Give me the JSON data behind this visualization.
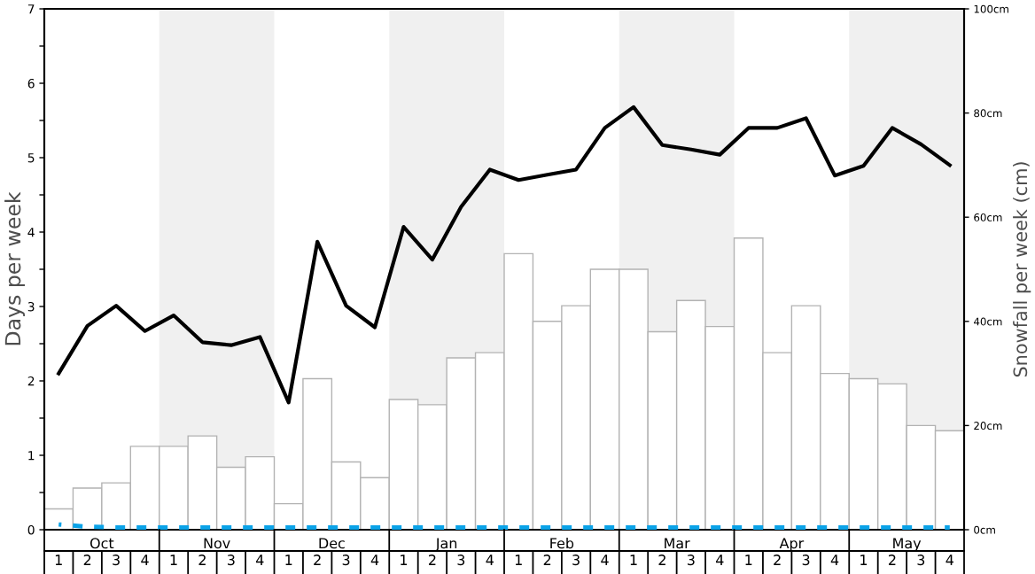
{
  "chart_data": {
    "type": "bar",
    "ylabel": "Days per week",
    "y2label": "Snowfall per week (cm)",
    "categories": [
      "1",
      "2",
      "3",
      "4",
      "1",
      "2",
      "3",
      "4",
      "1",
      "2",
      "3",
      "4",
      "1",
      "2",
      "3",
      "4",
      "1",
      "2",
      "3",
      "4",
      "1",
      "2",
      "3",
      "4",
      "1",
      "2",
      "3",
      "4",
      "1",
      "2",
      "3",
      "4"
    ],
    "annotations": [
      "Oct",
      "Nov",
      "Dec",
      "Jan",
      "Feb",
      "Mar",
      "Apr",
      "May"
    ],
    "ylim": [
      0,
      7
    ],
    "yticks": [
      0,
      {
        "value": 0.5,
        "label": null
      },
      1,
      {
        "value": 1.5,
        "label": null
      },
      2,
      {
        "value": 2.5,
        "label": null
      },
      3,
      {
        "value": 3.5,
        "label": null
      },
      4,
      {
        "value": 4.5,
        "label": null
      },
      5,
      {
        "value": 5.5,
        "label": null
      },
      6,
      {
        "value": 6.5,
        "label": null
      },
      7
    ],
    "y2lim": [
      0,
      100
    ],
    "y2ticks": [
      {
        "value": 0,
        "label": "0cm"
      },
      {
        "value": 20,
        "label": "20cm"
      },
      {
        "value": 40,
        "label": "40cm"
      },
      {
        "value": 60,
        "label": "60cm"
      },
      {
        "value": 80,
        "label": "80cm"
      },
      {
        "value": 100,
        "label": "100cm"
      }
    ],
    "series": [
      {
        "axis": "y2",
        "color": "#ffffff",
        "values": [
          4,
          8,
          9,
          16,
          16,
          18,
          12,
          14,
          5,
          29,
          13,
          10,
          25,
          24,
          33,
          34,
          53,
          40,
          43,
          50,
          50,
          38,
          44,
          39,
          56,
          34,
          43,
          30,
          29,
          28,
          20,
          19
        ]
      },
      {
        "type": "line",
        "color": "#000000",
        "line_style": "solid",
        "values": [
          2.1,
          2.74,
          3.01,
          2.67,
          2.88,
          2.52,
          2.48,
          2.59,
          1.71,
          3.87,
          3.01,
          2.72,
          4.07,
          3.63,
          4.34,
          4.84,
          4.7,
          4.77,
          4.84,
          5.4,
          5.68,
          5.17,
          5.11,
          5.04,
          5.4,
          5.4,
          5.53,
          4.76,
          4.89,
          5.4,
          5.18,
          4.9
        ]
      },
      {
        "type": "line",
        "color": "#0ba3e8",
        "line_style": "dashed",
        "values": [
          0.07,
          0.04,
          0.03,
          0.03,
          0.03,
          0.03,
          0.03,
          0.03,
          0.03,
          0.03,
          0.03,
          0.03,
          0.03,
          0.03,
          0.03,
          0.03,
          0.03,
          0.03,
          0.03,
          0.03,
          0.03,
          0.03,
          0.03,
          0.03,
          0.03,
          0.03,
          0.03,
          0.03,
          0.03,
          0.03,
          0.03,
          0.03
        ]
      }
    ]
  }
}
